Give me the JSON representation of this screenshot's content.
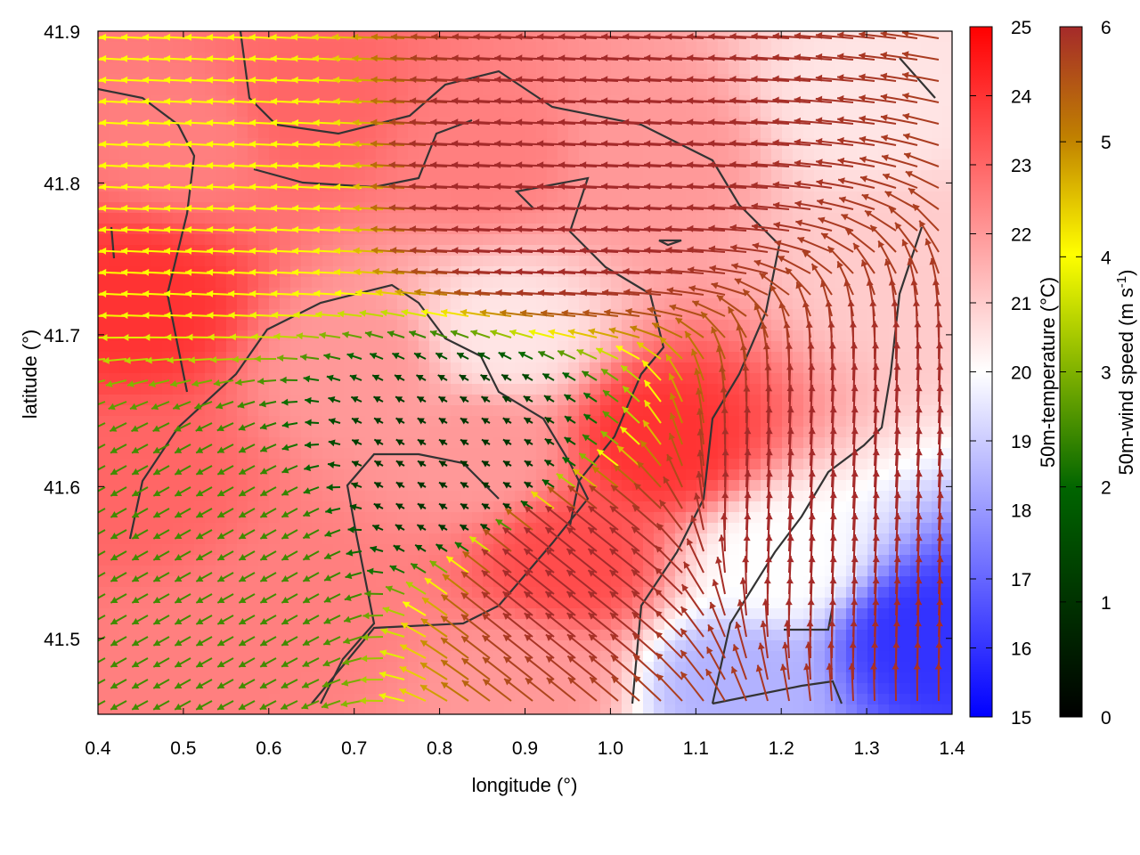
{
  "chart_data": {
    "type": "heatmap",
    "title": "",
    "xlabel": "longitude (°)",
    "ylabel": "latitude (°)",
    "xlim": [
      0.4,
      1.4
    ],
    "ylim": [
      41.45,
      41.9
    ],
    "x_ticks": [
      "0.4",
      "0.5",
      "0.6",
      "0.7",
      "0.8",
      "0.9",
      "1.0",
      "1.1",
      "1.2",
      "1.3",
      "1.4"
    ],
    "y_ticks": [
      "41.5",
      "41.6",
      "41.7",
      "41.8",
      "41.9"
    ],
    "grid": false,
    "temperature_colorbar": {
      "label": "50m-temperature (°C)",
      "range": [
        15,
        25
      ],
      "ticks": [
        "15",
        "16",
        "17",
        "18",
        "19",
        "20",
        "21",
        "22",
        "23",
        "24",
        "25"
      ],
      "colors": [
        "#0000ff",
        "#ffffff",
        "#ff0000"
      ]
    },
    "wind_colorbar": {
      "label_main": "50m-wind speed (m s",
      "label_sup": "-1",
      "label_end": ")",
      "range": [
        0,
        6
      ],
      "ticks": [
        "0",
        "1",
        "2",
        "3",
        "4",
        "5",
        "6"
      ],
      "colors": [
        "#000000",
        "#006400",
        "#ffff00",
        "#c08000",
        "#a52a2a"
      ]
    },
    "temperature_field_approx": [
      {
        "lon": 0.45,
        "lat": 41.72,
        "t": 24.0
      },
      {
        "lon": 0.5,
        "lat": 41.83,
        "t": 22.5
      },
      {
        "lon": 0.65,
        "lat": 41.85,
        "t": 23.0
      },
      {
        "lon": 0.85,
        "lat": 41.82,
        "t": 22.5
      },
      {
        "lon": 1.05,
        "lat": 41.82,
        "t": 22.0
      },
      {
        "lon": 1.3,
        "lat": 41.85,
        "t": 20.5
      },
      {
        "lon": 1.35,
        "lat": 41.75,
        "t": 21.0
      },
      {
        "lon": 0.88,
        "lat": 41.7,
        "t": 20.5
      },
      {
        "lon": 0.7,
        "lat": 41.68,
        "t": 22.0
      },
      {
        "lon": 0.45,
        "lat": 41.6,
        "t": 23.0
      },
      {
        "lon": 0.65,
        "lat": 41.52,
        "t": 22.5
      },
      {
        "lon": 0.85,
        "lat": 41.62,
        "t": 22.0
      },
      {
        "lon": 0.95,
        "lat": 41.55,
        "t": 23.5
      },
      {
        "lon": 1.06,
        "lat": 41.63,
        "t": 24.0
      },
      {
        "lon": 1.2,
        "lat": 41.55,
        "t": 20.0
      },
      {
        "lon": 1.37,
        "lat": 41.5,
        "t": 16.0
      },
      {
        "lon": 1.15,
        "lat": 41.47,
        "t": 18.5
      },
      {
        "lon": 0.9,
        "lat": 41.47,
        "t": 22.0
      },
      {
        "lon": 0.5,
        "lat": 41.48,
        "t": 22.5
      }
    ],
    "wind_regimes_approx": [
      {
        "region": "north-west",
        "lon": 0.55,
        "lat": 41.8,
        "direction": "westward",
        "speed_ms": 4.0
      },
      {
        "region": "north-centre",
        "lon": 0.95,
        "lat": 41.8,
        "direction": "westward",
        "speed_ms": 6.0
      },
      {
        "region": "centre",
        "lon": 0.85,
        "lat": 41.6,
        "direction": "weak",
        "speed_ms": 1.0
      },
      {
        "region": "south-west",
        "lon": 0.55,
        "lat": 41.55,
        "direction": "south-westward",
        "speed_ms": 2.5
      },
      {
        "region": "south-centre",
        "lon": 0.95,
        "lat": 41.55,
        "direction": "north-westward",
        "speed_ms": 6.0
      },
      {
        "region": "south-east",
        "lon": 1.25,
        "lat": 41.58,
        "direction": "northward",
        "speed_ms": 6.0
      }
    ]
  }
}
